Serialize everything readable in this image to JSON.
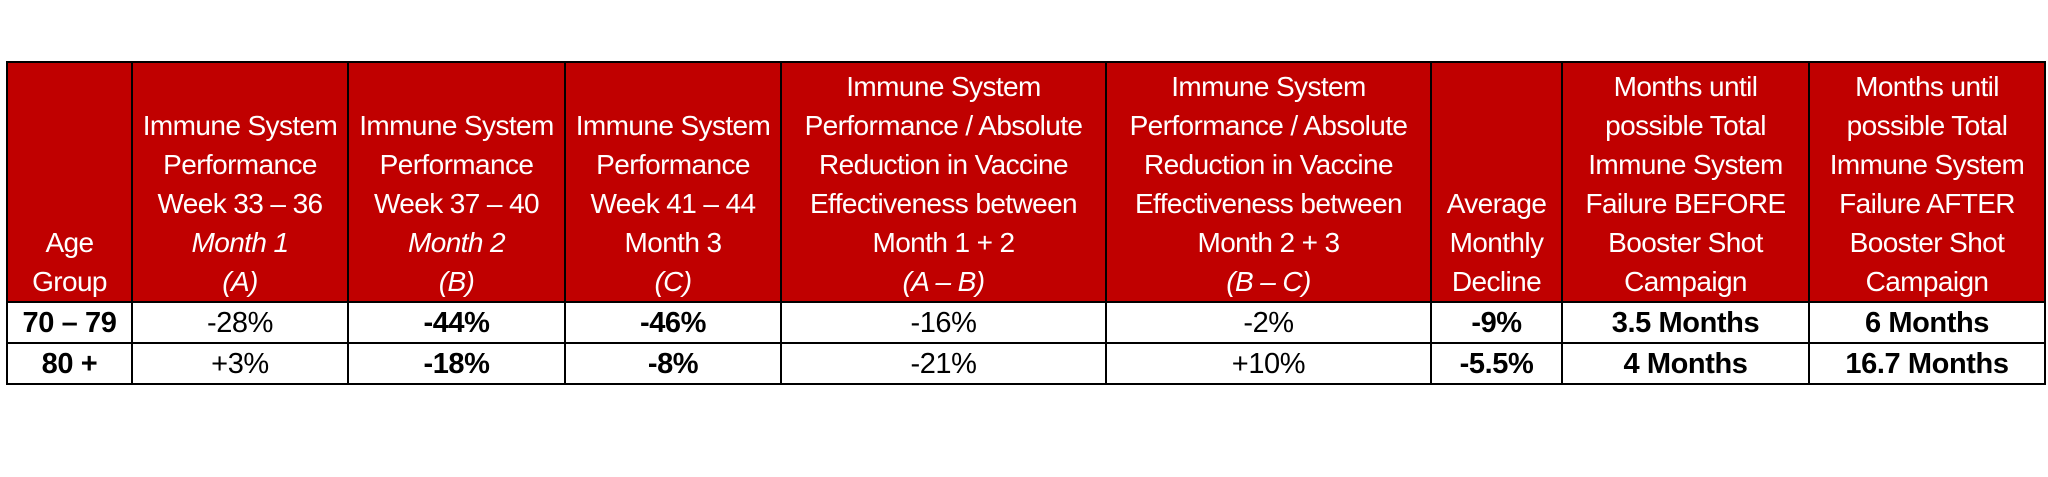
{
  "table": {
    "header": [
      [
        {
          "text": "Age Group",
          "italic": false
        }
      ],
      [
        {
          "text": "Immune System Performance Week 33 – 36",
          "italic": false
        },
        {
          "text": "Month 1",
          "italic": true
        },
        {
          "text": "(A)",
          "italic": true
        }
      ],
      [
        {
          "text": "Immune System Performance Week 37 – 40",
          "italic": false
        },
        {
          "text": "Month 2",
          "italic": true
        },
        {
          "text": "(B)",
          "italic": true
        }
      ],
      [
        {
          "text": "Immune System Performance Week 41 – 44",
          "italic": false
        },
        {
          "text": "Month 3",
          "italic": false
        },
        {
          "text": "(C)",
          "italic": true
        }
      ],
      [
        {
          "text": "Immune System Performance / Absolute Reduction in Vaccine Effectiveness between Month 1 + 2",
          "italic": false
        },
        {
          "text": "(A – B)",
          "italic": true
        }
      ],
      [
        {
          "text": "Immune System Performance / Absolute Reduction in Vaccine Effectiveness between Month 2 + 3",
          "italic": false
        },
        {
          "text": "(B – C)",
          "italic": true
        }
      ],
      [
        {
          "text": "Average Monthly Decline",
          "italic": false
        }
      ],
      [
        {
          "text": "Months until possible Total Immune System Failure BEFORE Booster Shot Campaign",
          "italic": false
        }
      ],
      [
        {
          "text": "Months until possible Total Immune System Failure AFTER Booster Shot Campaign",
          "italic": false
        }
      ]
    ],
    "bold_columns": [
      0,
      2,
      3,
      6,
      7,
      8
    ],
    "rows": [
      [
        "70 – 79",
        "-28%",
        "-44%",
        "-46%",
        "-16%",
        "-2%",
        "-9%",
        "3.5 Months",
        "6 Months"
      ],
      [
        "80 +",
        "+3%",
        "-18%",
        "-8%",
        "-21%",
        "+10%",
        "-5.5%",
        "4 Months",
        "16.7 Months"
      ]
    ]
  }
}
